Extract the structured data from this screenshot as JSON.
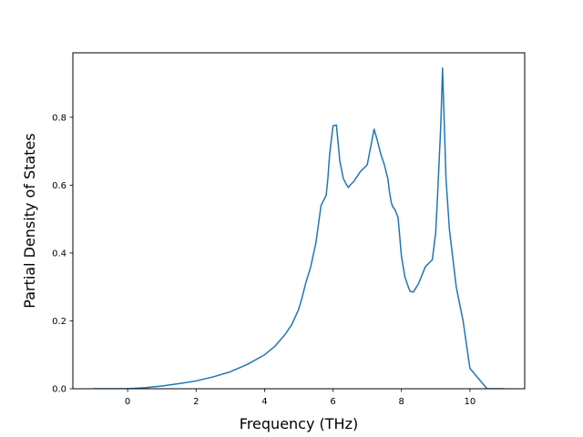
{
  "chart_data": {
    "type": "line",
    "xlabel": "Frequency (THz)",
    "ylabel": "Partial Density of States",
    "xlim": [
      -1.6,
      11.6
    ],
    "ylim": [
      0.0,
      0.99
    ],
    "xticks": [
      "0",
      "2",
      "4",
      "6",
      "8",
      "10"
    ],
    "yticks": [
      "0.0",
      "0.2",
      "0.4",
      "0.6",
      "0.8"
    ],
    "xtick_values": [
      0,
      2,
      4,
      6,
      8,
      10
    ],
    "ytick_values": [
      0.0,
      0.2,
      0.4,
      0.6,
      0.8
    ],
    "grid": false,
    "series": [
      {
        "color": "#1f77b4",
        "x": [
          -1.0,
          0.0,
          0.5,
          1.0,
          1.5,
          2.0,
          2.5,
          3.0,
          3.5,
          4.0,
          4.3,
          4.6,
          4.8,
          5.0,
          5.1,
          5.2,
          5.35,
          5.5,
          5.65,
          5.8,
          5.85,
          5.9,
          6.0,
          6.1,
          6.2,
          6.3,
          6.4,
          6.45,
          6.5,
          6.6,
          6.8,
          7.0,
          7.2,
          7.3,
          7.4,
          7.5,
          7.6,
          7.65,
          7.7,
          7.75,
          7.8,
          7.9,
          8.0,
          8.1,
          8.2,
          8.25,
          8.35,
          8.5,
          8.7,
          8.9,
          9.0,
          9.05,
          9.1,
          9.15,
          9.2,
          9.3,
          9.4,
          9.6,
          9.8,
          9.9,
          10.0,
          10.5,
          11.0
        ],
        "y": [
          0.0,
          0.0,
          0.003,
          0.008,
          0.015,
          0.023,
          0.035,
          0.05,
          0.072,
          0.1,
          0.125,
          0.16,
          0.19,
          0.235,
          0.27,
          0.31,
          0.36,
          0.43,
          0.54,
          0.57,
          0.62,
          0.69,
          0.775,
          0.777,
          0.67,
          0.62,
          0.6,
          0.593,
          0.6,
          0.61,
          0.64,
          0.66,
          0.765,
          0.73,
          0.69,
          0.66,
          0.62,
          0.58,
          0.55,
          0.535,
          0.53,
          0.505,
          0.39,
          0.33,
          0.3,
          0.287,
          0.285,
          0.31,
          0.36,
          0.38,
          0.46,
          0.56,
          0.67,
          0.78,
          0.945,
          0.62,
          0.47,
          0.3,
          0.2,
          0.13,
          0.06,
          0.0,
          0.0
        ]
      }
    ]
  }
}
